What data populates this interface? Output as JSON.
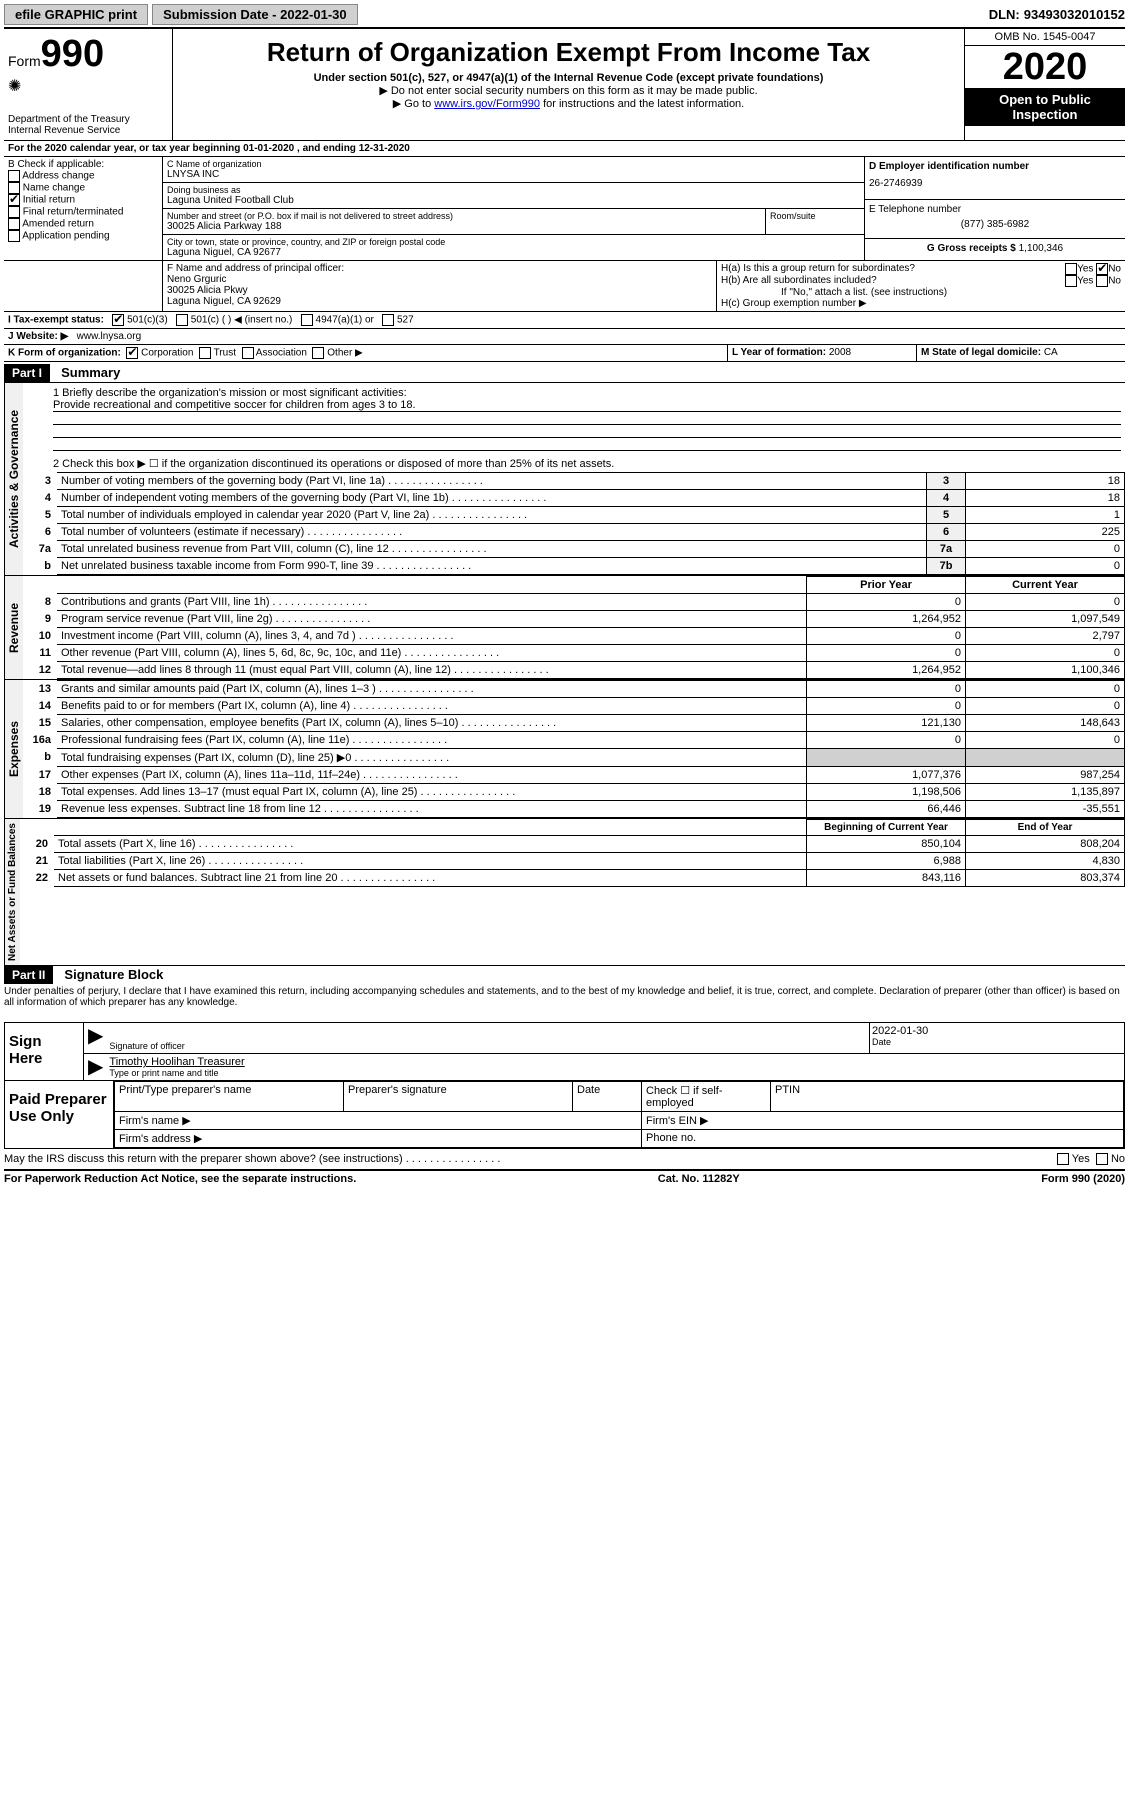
{
  "topbar": {
    "efile": "efile GRAPHIC print",
    "submission_label": "Submission Date - ",
    "submission_date": "2022-01-30",
    "dln_label": "DLN: ",
    "dln": "93493032010152"
  },
  "header": {
    "form_label": "Form",
    "form_number": "990",
    "dept": "Department of the Treasury",
    "irs": "Internal Revenue Service",
    "title": "Return of Organization Exempt From Income Tax",
    "subtitle": "Under section 501(c), 527, or 4947(a)(1) of the Internal Revenue Code (except private foundations)",
    "note1": "▶ Do not enter social security numbers on this form as it may be made public.",
    "note2_pre": "▶ Go to ",
    "note2_link": "www.irs.gov/Form990",
    "note2_post": " for instructions and the latest information.",
    "omb": "OMB No. 1545-0047",
    "year": "2020",
    "inspection": "Open to Public Inspection"
  },
  "lineA": "For the 2020 calendar year, or tax year beginning 01-01-2020   , and ending 12-31-2020",
  "boxB": {
    "label": "B Check if applicable:",
    "items": [
      "Address change",
      "Name change",
      "Initial return",
      "Final return/terminated",
      "Amended return",
      "Application pending"
    ],
    "checked_idx": 2
  },
  "boxC": {
    "label": "C Name of organization",
    "name": "LNYSA INC",
    "dba_label": "Doing business as",
    "dba": "Laguna United Football Club",
    "addr_label": "Number and street (or P.O. box if mail is not delivered to street address)",
    "room_label": "Room/suite",
    "addr": "30025 Alicia Parkway 188",
    "city_label": "City or town, state or province, country, and ZIP or foreign postal code",
    "city": "Laguna Niguel, CA  92677"
  },
  "boxD": {
    "label": "D Employer identification number",
    "value": "26-2746939"
  },
  "boxE": {
    "label": "E Telephone number",
    "value": "(877) 385-6982"
  },
  "boxG": {
    "label": "G Gross receipts $ ",
    "value": "1,100,346"
  },
  "boxF": {
    "label": "F  Name and address of principal officer:",
    "name": "Neno Grguric",
    "addr1": "30025 Alicia Pkwy",
    "addr2": "Laguna Niguel, CA  92629"
  },
  "boxH": {
    "a_label": "H(a)  Is this a group return for subordinates?",
    "b_label": "H(b)  Are all subordinates included?",
    "b_note": "If \"No,\" attach a list. (see instructions)",
    "c_label": "H(c)  Group exemption number ▶",
    "yes": "Yes",
    "no": "No"
  },
  "boxI": {
    "label": "I  Tax-exempt status:",
    "opts": [
      "501(c)(3)",
      "501(c) (  ) ◀ (insert no.)",
      "4947(a)(1) or",
      "527"
    ]
  },
  "boxJ": {
    "label": "J  Website: ▶",
    "value": "www.lnysa.org"
  },
  "boxK": {
    "label": "K Form of organization:",
    "opts": [
      "Corporation",
      "Trust",
      "Association",
      "Other ▶"
    ]
  },
  "boxL": {
    "label": "L Year of formation: ",
    "value": "2008"
  },
  "boxM": {
    "label": "M State of legal domicile: ",
    "value": "CA"
  },
  "part1": {
    "header": "Part I",
    "title": "Summary"
  },
  "activities": {
    "label": "Activities & Governance",
    "line1_label": "1  Briefly describe the organization's mission or most significant activities:",
    "line1_text": "Provide recreational and competitive soccer for children from ages 3 to 18.",
    "line2": "2    Check this box ▶ ☐ if the organization discontinued its operations or disposed of more than 25% of its net assets.",
    "rows": [
      {
        "n": "3",
        "desc": "Number of voting members of the governing body (Part VI, line 1a)",
        "box": "3",
        "val": "18"
      },
      {
        "n": "4",
        "desc": "Number of independent voting members of the governing body (Part VI, line 1b)",
        "box": "4",
        "val": "18"
      },
      {
        "n": "5",
        "desc": "Total number of individuals employed in calendar year 2020 (Part V, line 2a)",
        "box": "5",
        "val": "1"
      },
      {
        "n": "6",
        "desc": "Total number of volunteers (estimate if necessary)",
        "box": "6",
        "val": "225"
      },
      {
        "n": "7a",
        "desc": "Total unrelated business revenue from Part VIII, column (C), line 12",
        "box": "7a",
        "val": "0"
      },
      {
        "n": "b",
        "desc": "Net unrelated business taxable income from Form 990-T, line 39",
        "box": "7b",
        "val": "0"
      }
    ]
  },
  "revenue": {
    "label": "Revenue",
    "col1": "Prior Year",
    "col2": "Current Year",
    "rows": [
      {
        "n": "8",
        "desc": "Contributions and grants (Part VIII, line 1h)",
        "v1": "0",
        "v2": "0"
      },
      {
        "n": "9",
        "desc": "Program service revenue (Part VIII, line 2g)",
        "v1": "1,264,952",
        "v2": "1,097,549"
      },
      {
        "n": "10",
        "desc": "Investment income (Part VIII, column (A), lines 3, 4, and 7d )",
        "v1": "0",
        "v2": "2,797"
      },
      {
        "n": "11",
        "desc": "Other revenue (Part VIII, column (A), lines 5, 6d, 8c, 9c, 10c, and 11e)",
        "v1": "0",
        "v2": "0"
      },
      {
        "n": "12",
        "desc": "Total revenue—add lines 8 through 11 (must equal Part VIII, column (A), line 12)",
        "v1": "1,264,952",
        "v2": "1,100,346"
      }
    ]
  },
  "expenses": {
    "label": "Expenses",
    "rows": [
      {
        "n": "13",
        "desc": "Grants and similar amounts paid (Part IX, column (A), lines 1–3 )",
        "v1": "0",
        "v2": "0"
      },
      {
        "n": "14",
        "desc": "Benefits paid to or for members (Part IX, column (A), line 4)",
        "v1": "0",
        "v2": "0"
      },
      {
        "n": "15",
        "desc": "Salaries, other compensation, employee benefits (Part IX, column (A), lines 5–10)",
        "v1": "121,130",
        "v2": "148,643"
      },
      {
        "n": "16a",
        "desc": "Professional fundraising fees (Part IX, column (A), line 11e)",
        "v1": "0",
        "v2": "0"
      },
      {
        "n": "b",
        "desc": "Total fundraising expenses (Part IX, column (D), line 25) ▶0",
        "v1": "SHADE",
        "v2": "SHADE"
      },
      {
        "n": "17",
        "desc": "Other expenses (Part IX, column (A), lines 11a–11d, 11f–24e)",
        "v1": "1,077,376",
        "v2": "987,254"
      },
      {
        "n": "18",
        "desc": "Total expenses. Add lines 13–17 (must equal Part IX, column (A), line 25)",
        "v1": "1,198,506",
        "v2": "1,135,897"
      },
      {
        "n": "19",
        "desc": "Revenue less expenses. Subtract line 18 from line 12",
        "v1": "66,446",
        "v2": "-35,551"
      }
    ]
  },
  "netassets": {
    "label": "Net Assets or Fund Balances",
    "col1": "Beginning of Current Year",
    "col2": "End of Year",
    "rows": [
      {
        "n": "20",
        "desc": "Total assets (Part X, line 16)",
        "v1": "850,104",
        "v2": "808,204"
      },
      {
        "n": "21",
        "desc": "Total liabilities (Part X, line 26)",
        "v1": "6,988",
        "v2": "4,830"
      },
      {
        "n": "22",
        "desc": "Net assets or fund balances. Subtract line 21 from line 20",
        "v1": "843,116",
        "v2": "803,374"
      }
    ]
  },
  "part2": {
    "header": "Part II",
    "title": "Signature Block"
  },
  "perjury": "Under penalties of perjury, I declare that I have examined this return, including accompanying schedules and statements, and to the best of my knowledge and belief, it is true, correct, and complete. Declaration of preparer (other than officer) is based on all information of which preparer has any knowledge.",
  "sign": {
    "here": "Sign Here",
    "sig_label": "Signature of officer",
    "date_label": "Date",
    "date": "2022-01-30",
    "name": "Timothy Hoolihan  Treasurer",
    "name_label": "Type or print name and title"
  },
  "paid": {
    "label": "Paid Preparer Use Only",
    "col1": "Print/Type preparer's name",
    "col2": "Preparer's signature",
    "col3": "Date",
    "col4_pre": "Check ☐ if self-employed",
    "col5": "PTIN",
    "firm_name": "Firm's name   ▶",
    "firm_ein": "Firm's EIN ▶",
    "firm_addr": "Firm's address ▶",
    "phone": "Phone no."
  },
  "discuss": {
    "q": "May the IRS discuss this return with the preparer shown above? (see instructions)",
    "yes": "Yes",
    "no": "No"
  },
  "footer": {
    "left": "For Paperwork Reduction Act Notice, see the separate instructions.",
    "mid": "Cat. No. 11282Y",
    "right_pre": "Form ",
    "right_form": "990",
    "right_post": " (2020)"
  }
}
